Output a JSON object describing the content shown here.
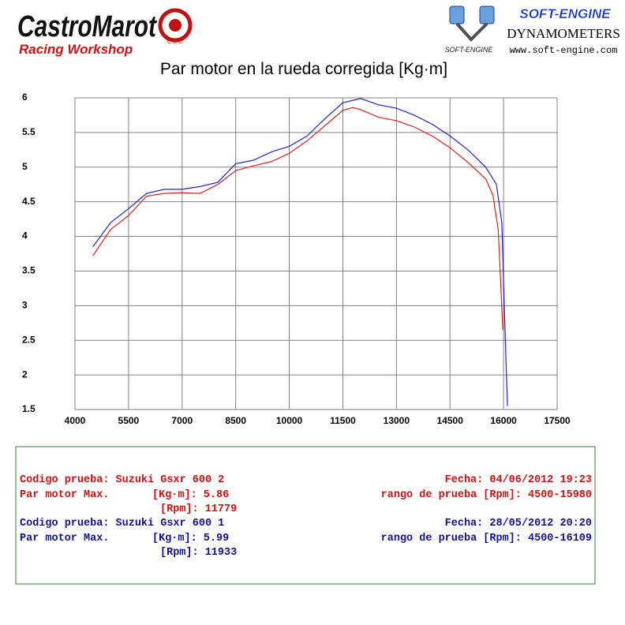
{
  "header": {
    "brand": "CastroMarot",
    "brand_sub": "Racing Workshop",
    "brand_badge": "C.D.C.",
    "partner": "SOFT-ENGINE",
    "partner_small": "SOFT-ENGINE",
    "partner_line": "DYNAMOMETERS",
    "partner_url": "www.soft-engine.com"
  },
  "chart_data": {
    "type": "line",
    "title": "Par motor en la rueda corregida [Kg·m]",
    "xlim": [
      4000,
      17500
    ],
    "xticks": [
      4000,
      5500,
      7000,
      8500,
      10000,
      11500,
      13000,
      14500,
      16000,
      17500
    ],
    "ylim": [
      1.5,
      6
    ],
    "yticks": [
      1.5,
      2,
      2.5,
      3,
      3.5,
      4,
      4.5,
      5,
      5.5,
      6
    ],
    "grid": true,
    "series": [
      {
        "color": "#2020e0",
        "x": [
          4500,
          5000,
          5500,
          6000,
          6500,
          7000,
          7500,
          8000,
          8500,
          9000,
          9500,
          10000,
          10500,
          11000,
          11500,
          12000,
          12500,
          13000,
          13500,
          14000,
          14500,
          15000,
          15500,
          15800,
          15950,
          16050,
          16109
        ],
        "values": [
          3.85,
          4.2,
          4.4,
          4.62,
          4.68,
          4.68,
          4.72,
          4.78,
          5.05,
          5.1,
          5.22,
          5.3,
          5.45,
          5.7,
          5.93,
          5.99,
          5.9,
          5.85,
          5.75,
          5.62,
          5.45,
          5.25,
          5.0,
          4.75,
          4.2,
          2.5,
          1.55
        ]
      },
      {
        "color": "#e02020",
        "x": [
          4500,
          5000,
          5500,
          6000,
          6500,
          7000,
          7500,
          8000,
          8500,
          9000,
          9500,
          10000,
          10500,
          11000,
          11500,
          11779,
          12000,
          12500,
          13000,
          13500,
          14000,
          14500,
          15000,
          15500,
          15700,
          15850,
          15980
        ],
        "values": [
          3.72,
          4.1,
          4.3,
          4.58,
          4.62,
          4.63,
          4.62,
          4.75,
          4.95,
          5.02,
          5.08,
          5.2,
          5.38,
          5.6,
          5.82,
          5.86,
          5.83,
          5.72,
          5.67,
          5.58,
          5.45,
          5.28,
          5.07,
          4.83,
          4.6,
          4.1,
          2.65
        ]
      }
    ]
  },
  "info": {
    "tests": [
      {
        "color": "#d01010",
        "code_line": "Codigo prueba: Suzuki Gsxr 600 2",
        "max_label": "Par motor Max.",
        "torque_line": "[Kg·m]: 5.86",
        "rpm_line": "[Rpm]: 11779",
        "date_line": "Fecha: 04/06/2012 19:23",
        "range_line": "rango de prueba [Rpm]: 4500-15980"
      },
      {
        "color": "#101090",
        "code_line": "Codigo prueba: Suzuki Gsxr 600 1",
        "max_label": "Par motor Max.",
        "torque_line": "[Kg·m]: 5.99",
        "rpm_line": "[Rpm]: 11933",
        "date_line": "Fecha: 28/05/2012 20:20",
        "range_line": "rango de prueba [Rpm]: 4500-16109"
      }
    ]
  }
}
